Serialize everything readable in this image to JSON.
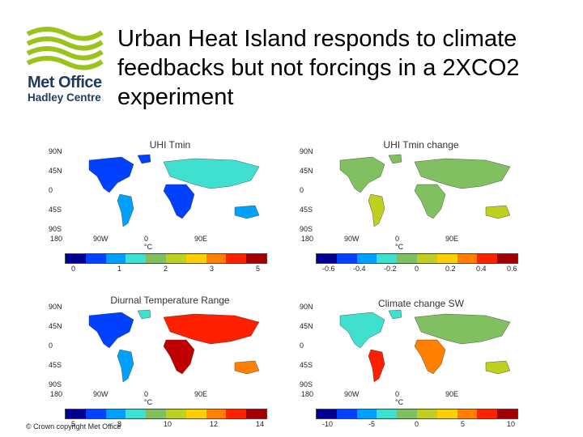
{
  "logo": {
    "brand": "Met Office",
    "sub": "Hadley Centre"
  },
  "title": "Urban Heat Island responds to climate feedbacks but not forcings in a 2XCO2 experiment",
  "footer": "© Crown copyright   Met Office",
  "lat_labels": [
    "90N",
    "45N",
    "0",
    "45S",
    "90S"
  ],
  "lon_labels": [
    "180",
    "90W",
    "0",
    "90E"
  ],
  "unit": "°C",
  "colors": {
    "accent_green": "#9ac31c",
    "navy": "#1f3a5f"
  },
  "colorbar": [
    "#00008f",
    "#0040ff",
    "#00a0ff",
    "#40e0d0",
    "#80c060",
    "#c0d020",
    "#ffd000",
    "#ff8000",
    "#ff2000",
    "#a00000"
  ],
  "panels": [
    {
      "title": "UHI Tmin",
      "ticks": [
        "0",
        "1",
        "2",
        "3",
        "5"
      ]
    },
    {
      "title": "UHI Tmin change",
      "ticks": [
        "-0.6",
        "-0.4",
        "-0.2",
        "0",
        "0.2",
        "0.4",
        "0.6"
      ]
    },
    {
      "title": "Diurnal Temperature Range",
      "ticks": [
        "5",
        "8",
        "10",
        "12",
        "14"
      ]
    },
    {
      "title": "Climate change SW",
      "ticks": [
        "-10",
        "-5",
        "0",
        "5",
        "10"
      ]
    }
  ]
}
